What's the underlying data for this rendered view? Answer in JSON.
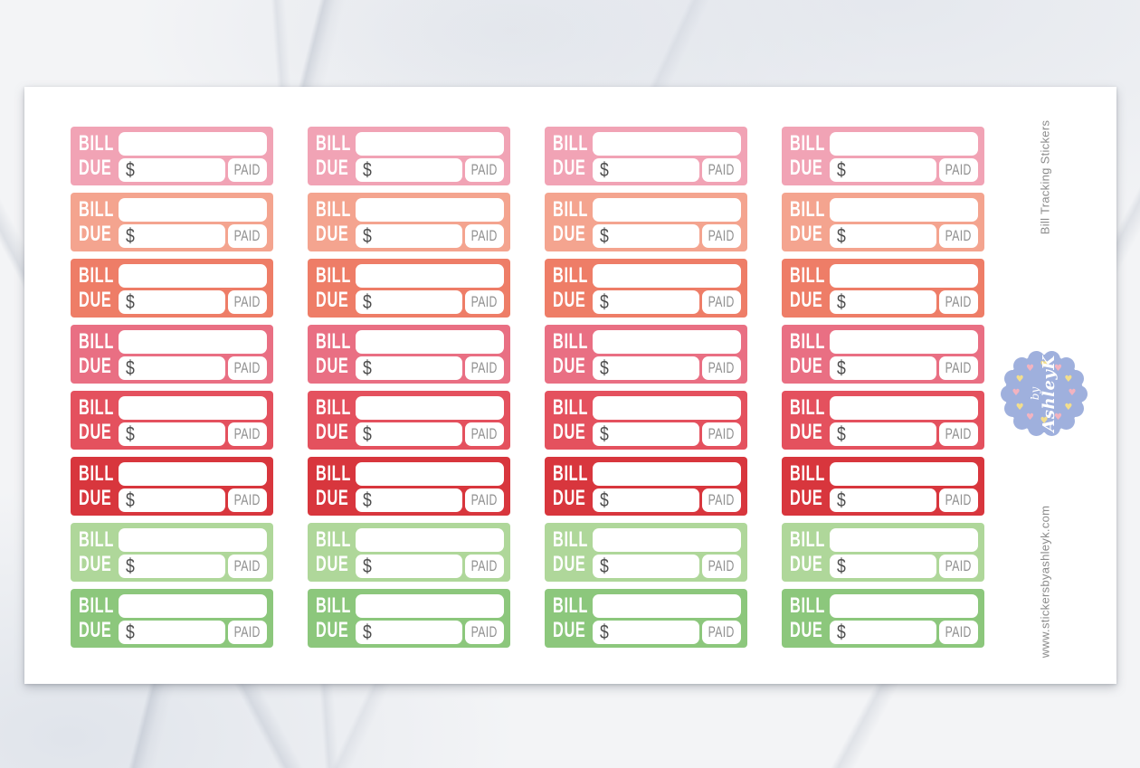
{
  "product": {
    "title": "Bill Tracking Stickers",
    "website": "www.stickersbyashleyk.com"
  },
  "side_text_color": "#8B8B8B",
  "sticker": {
    "bill_label": "BILL",
    "due_label": "DUE",
    "currency_symbol": "$",
    "paid_label": "PAID",
    "field_color": "#FFFFFF",
    "currency_color": "#4D4D4D",
    "paid_text_color": "#8F8F8F"
  },
  "sheet": {
    "columns": 4,
    "rows": [
      {
        "name": "light-pink",
        "color": "#F1A3B5"
      },
      {
        "name": "salmon",
        "color": "#F4A48F"
      },
      {
        "name": "coral",
        "color": "#EE7D67"
      },
      {
        "name": "rose-pink",
        "color": "#E96F83"
      },
      {
        "name": "raspberry",
        "color": "#E4515E"
      },
      {
        "name": "red",
        "color": "#D8363D"
      },
      {
        "name": "light-green",
        "color": "#AFD79A"
      },
      {
        "name": "green",
        "color": "#8CC77C"
      }
    ]
  },
  "logo": {
    "line1": "by",
    "line2": "AshleyK",
    "badge_color": "#9FB0DD",
    "text_color": "#FFFFFF",
    "heart_colors": [
      "#F3DE8C",
      "#F2B3C0"
    ]
  }
}
